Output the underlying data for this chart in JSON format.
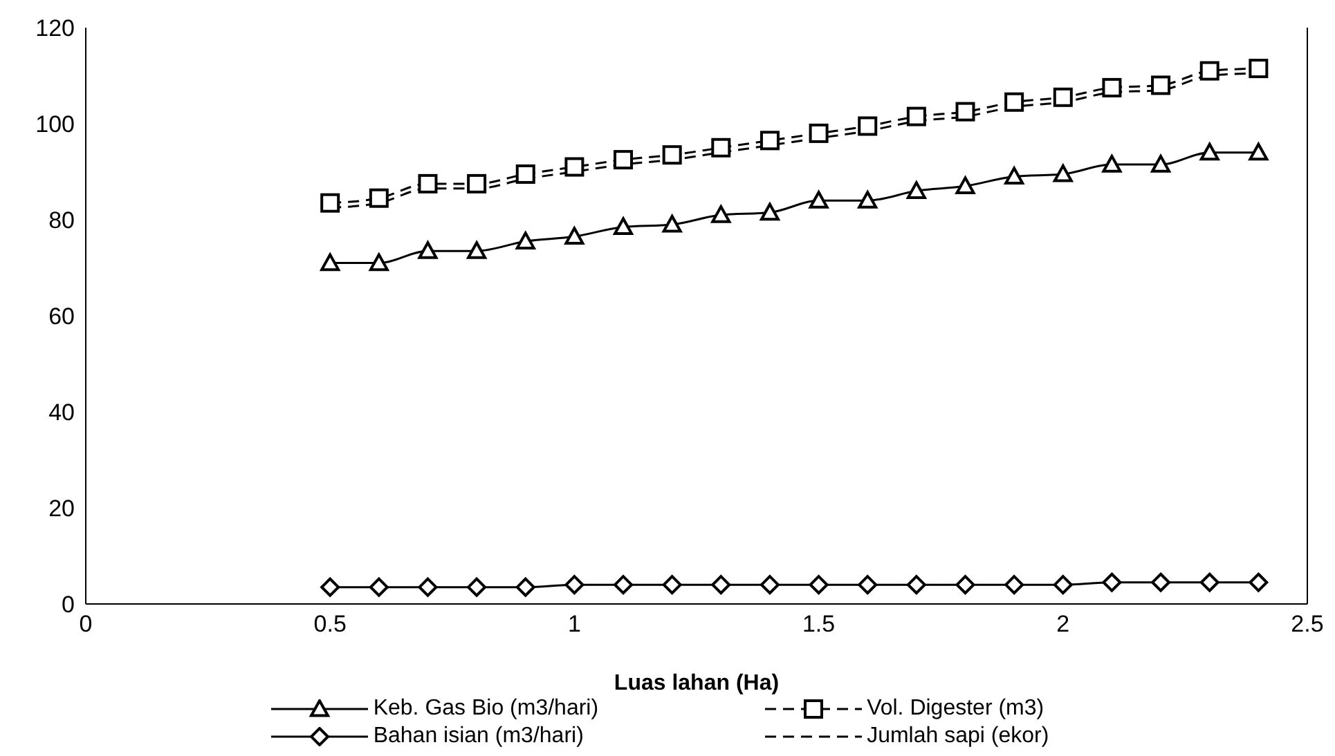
{
  "chart_data": {
    "type": "line",
    "xlabel": "Luas lahan (Ha)",
    "x": [
      0.5,
      0.6,
      0.7,
      0.8,
      0.9,
      1.0,
      1.1,
      1.2,
      1.3,
      1.4,
      1.5,
      1.6,
      1.7,
      1.8,
      1.9,
      2.0,
      2.1,
      2.2,
      2.3,
      2.4
    ],
    "series": [
      {
        "name": "Keb. Gas Bio (m3/hari)",
        "color": "#000000",
        "marker": "triangle",
        "line_style": "solid",
        "values": [
          71,
          71,
          73.5,
          73.5,
          75.5,
          76.5,
          78.5,
          79,
          81,
          81.5,
          84,
          84,
          86,
          87,
          89,
          89.5,
          91.5,
          91.5,
          94,
          94
        ]
      },
      {
        "name": "Vol. Digester (m3)",
        "color": "#000000",
        "marker": "square",
        "line_style": "dashed",
        "values": [
          83.5,
          84.5,
          87.5,
          87.5,
          89.5,
          91,
          92.5,
          93.5,
          95,
          96.5,
          98,
          99.5,
          101.5,
          102.5,
          104.5,
          105.5,
          107.5,
          108,
          111,
          111.5
        ]
      },
      {
        "name": "Bahan isian (m3/hari)",
        "color": "#000000",
        "marker": "diamond",
        "line_style": "solid",
        "values": [
          3.5,
          3.5,
          3.5,
          3.5,
          3.5,
          4,
          4,
          4,
          4,
          4,
          4,
          4,
          4,
          4,
          4,
          4,
          4.5,
          4.5,
          4.5,
          4.5
        ]
      },
      {
        "name": "Jumlah sapi (ekor)",
        "color": "#000000",
        "marker": "none",
        "line_style": "dashed",
        "values": [
          82.5,
          83.5,
          86.5,
          86.5,
          88.5,
          90,
          91.5,
          92.5,
          94,
          95.5,
          97,
          98.5,
          100.5,
          101.5,
          103.5,
          104.5,
          106.5,
          107,
          110,
          110.5
        ]
      }
    ],
    "xlim": [
      0,
      2.5
    ],
    "xticks": [
      0,
      0.5,
      1,
      1.5,
      2,
      2.5
    ],
    "ylim": [
      0,
      120
    ],
    "yticks": [
      0,
      20,
      40,
      60,
      80,
      100,
      120
    ],
    "grid": false,
    "legend": "bottom"
  }
}
